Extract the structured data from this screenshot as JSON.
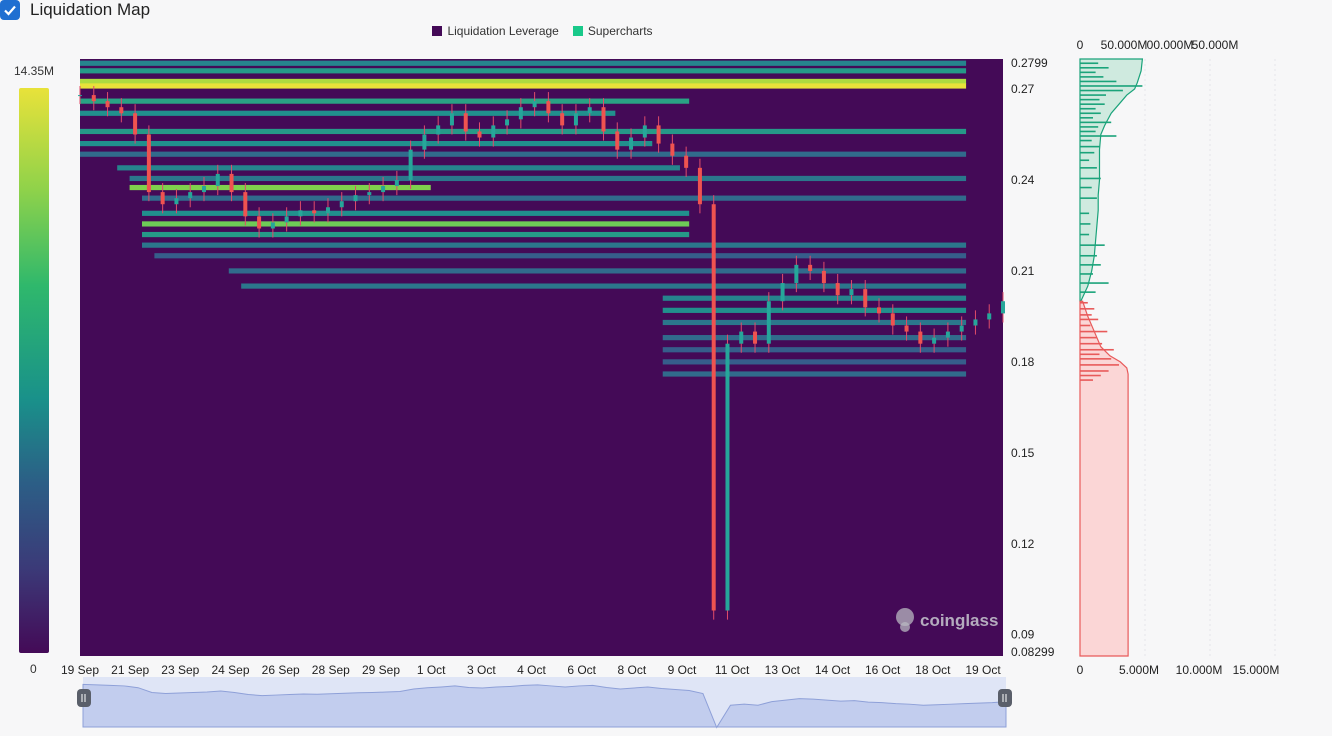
{
  "toggle": {
    "label": "Liquidation Map",
    "checked": true
  },
  "legend": [
    {
      "label": "Liquidation Leverage",
      "color": "#440a57"
    },
    {
      "label": "Supercharts",
      "color": "#19c98a"
    }
  ],
  "colorbar": {
    "max_label": "14.35M",
    "min_label": "0"
  },
  "watermark": "coinglass",
  "chart_data": {
    "type": "heatmap",
    "x_tick_labels": [
      "19 Sep",
      "21 Sep",
      "23 Sep",
      "24 Sep",
      "26 Sep",
      "28 Sep",
      "29 Sep",
      "1 Oct",
      "3 Oct",
      "4 Oct",
      "6 Oct",
      "8 Oct",
      "9 Oct",
      "11 Oct",
      "13 Oct",
      "14 Oct",
      "16 Oct",
      "18 Oct",
      "19 Oct"
    ],
    "y_tick_labels": [
      "0.2799",
      "0.27",
      "0.24",
      "0.21",
      "0.18",
      "0.15",
      "0.12",
      "0.09",
      "0.08299"
    ],
    "ylim": [
      0.08299,
      0.2799
    ],
    "price_series": [
      0.268,
      0.266,
      0.264,
      0.262,
      0.255,
      0.236,
      0.232,
      0.234,
      0.236,
      0.238,
      0.242,
      0.236,
      0.228,
      0.224,
      0.226,
      0.228,
      0.23,
      0.229,
      0.231,
      0.233,
      0.235,
      0.236,
      0.238,
      0.24,
      0.25,
      0.255,
      0.258,
      0.262,
      0.256,
      0.254,
      0.258,
      0.26,
      0.264,
      0.266,
      0.262,
      0.258,
      0.262,
      0.264,
      0.256,
      0.25,
      0.254,
      0.258,
      0.252,
      0.248,
      0.244,
      0.232,
      0.098,
      0.186,
      0.19,
      0.186,
      0.2,
      0.206,
      0.212,
      0.21,
      0.206,
      0.202,
      0.204,
      0.198,
      0.196,
      0.192,
      0.19,
      0.186,
      0.188,
      0.19,
      0.192,
      0.194,
      0.196,
      0.2
    ],
    "liquidation_bands": [
      {
        "price": 0.2785,
        "end": 0.96,
        "intensity": 0.45
      },
      {
        "price": 0.276,
        "end": 0.96,
        "intensity": 0.55
      },
      {
        "price": 0.2725,
        "end": 0.96,
        "intensity": 0.92
      },
      {
        "price": 0.271,
        "end": 0.96,
        "intensity": 1.0
      },
      {
        "price": 0.266,
        "end": 0.66,
        "intensity": 0.6
      },
      {
        "price": 0.262,
        "end": 0.58,
        "intensity": 0.5
      },
      {
        "price": 0.256,
        "end": 0.96,
        "intensity": 0.55
      },
      {
        "price": 0.252,
        "end": 0.62,
        "intensity": 0.5
      },
      {
        "price": 0.2485,
        "end": 0.96,
        "intensity": 0.35
      },
      {
        "price": 0.244,
        "end": 0.65,
        "intensity": 0.45
      },
      {
        "price": 0.2405,
        "end": 0.96,
        "intensity": 0.4
      },
      {
        "price": 0.2375,
        "end": 0.38,
        "intensity": 0.85
      },
      {
        "price": 0.234,
        "end": 0.96,
        "intensity": 0.35
      },
      {
        "price": 0.229,
        "end": 0.66,
        "intensity": 0.5
      },
      {
        "price": 0.2255,
        "end": 0.66,
        "intensity": 0.82
      },
      {
        "price": 0.222,
        "end": 0.66,
        "intensity": 0.55
      },
      {
        "price": 0.2185,
        "end": 0.96,
        "intensity": 0.4
      },
      {
        "price": 0.215,
        "end": 0.96,
        "intensity": 0.3
      },
      {
        "price": 0.21,
        "end": 0.96,
        "intensity": 0.35
      },
      {
        "price": 0.205,
        "end": 0.96,
        "intensity": 0.4
      },
      {
        "price": 0.201,
        "end": 0.96,
        "intensity": 0.45
      },
      {
        "price": 0.197,
        "end": 0.96,
        "intensity": 0.5
      },
      {
        "price": 0.193,
        "end": 0.96,
        "intensity": 0.4
      },
      {
        "price": 0.188,
        "end": 0.96,
        "intensity": 0.35
      },
      {
        "price": 0.184,
        "end": 0.96,
        "intensity": 0.3
      },
      {
        "price": 0.18,
        "end": 0.96,
        "intensity": 0.3
      },
      {
        "price": 0.176,
        "end": 0.96,
        "intensity": 0.35
      }
    ],
    "colorscale_range": [
      0,
      14350000
    ]
  },
  "side_panel": {
    "top_axis_labels": [
      "0",
      "50.000M",
      "00.000M",
      "50.000M"
    ],
    "bottom_axis_labels": [
      "0",
      "5.000M",
      "10.000M",
      "15.000M"
    ],
    "short_color": "#1aa37a",
    "long_color": "#e85a5a",
    "short_cumulative": [
      [
        0.2799,
        48
      ],
      [
        0.276,
        47
      ],
      [
        0.272,
        44
      ],
      [
        0.27,
        42
      ],
      [
        0.268,
        36
      ],
      [
        0.265,
        30
      ],
      [
        0.262,
        24
      ],
      [
        0.258,
        19
      ],
      [
        0.255,
        16
      ],
      [
        0.25,
        15
      ],
      [
        0.245,
        15
      ],
      [
        0.24,
        15
      ],
      [
        0.235,
        14
      ],
      [
        0.23,
        14
      ],
      [
        0.225,
        13
      ],
      [
        0.22,
        12
      ],
      [
        0.215,
        11
      ],
      [
        0.21,
        9
      ],
      [
        0.205,
        6
      ],
      [
        0.2,
        0.6
      ]
    ],
    "long_cumulative": [
      [
        0.2,
        0.2
      ],
      [
        0.195,
        0.6
      ],
      [
        0.19,
        1.1
      ],
      [
        0.185,
        1.6
      ],
      [
        0.182,
        2.3
      ],
      [
        0.18,
        3.1
      ],
      [
        0.178,
        3.6
      ],
      [
        0.176,
        3.7
      ],
      [
        0.17,
        3.7
      ],
      [
        0.15,
        3.7
      ],
      [
        0.12,
        3.7
      ],
      [
        0.09,
        3.7
      ],
      [
        0.08299,
        3.7
      ]
    ],
    "short_bars": [
      [
        0.2785,
        14
      ],
      [
        0.277,
        22
      ],
      [
        0.2755,
        12
      ],
      [
        0.274,
        18
      ],
      [
        0.2725,
        28
      ],
      [
        0.271,
        48
      ],
      [
        0.2695,
        33
      ],
      [
        0.268,
        20
      ],
      [
        0.2665,
        15
      ],
      [
        0.265,
        19
      ],
      [
        0.2635,
        12
      ],
      [
        0.262,
        16
      ],
      [
        0.2605,
        10
      ],
      [
        0.259,
        24
      ],
      [
        0.2575,
        14
      ],
      [
        0.256,
        12
      ],
      [
        0.2545,
        28
      ],
      [
        0.253,
        9
      ],
      [
        0.251,
        15
      ],
      [
        0.249,
        11
      ],
      [
        0.2465,
        7
      ],
      [
        0.244,
        13
      ],
      [
        0.2405,
        16
      ],
      [
        0.2375,
        9
      ],
      [
        0.234,
        13
      ],
      [
        0.229,
        7
      ],
      [
        0.2255,
        8
      ],
      [
        0.222,
        7
      ],
      [
        0.2185,
        19
      ],
      [
        0.215,
        13
      ],
      [
        0.212,
        16
      ],
      [
        0.209,
        10
      ],
      [
        0.206,
        22
      ],
      [
        0.203,
        12
      ]
    ],
    "long_bars": [
      [
        0.1995,
        0.6
      ],
      [
        0.1975,
        1.1
      ],
      [
        0.1955,
        0.9
      ],
      [
        0.194,
        1.4
      ],
      [
        0.192,
        0.8
      ],
      [
        0.19,
        2.1
      ],
      [
        0.188,
        1.3
      ],
      [
        0.186,
        1.7
      ],
      [
        0.184,
        2.6
      ],
      [
        0.1825,
        1.5
      ],
      [
        0.181,
        2.4
      ],
      [
        0.179,
        3.0
      ],
      [
        0.177,
        2.2
      ],
      [
        0.1755,
        1.6
      ],
      [
        0.174,
        1.0
      ]
    ]
  },
  "navigator": {
    "price_series_ref": "chart_data.price_series"
  }
}
